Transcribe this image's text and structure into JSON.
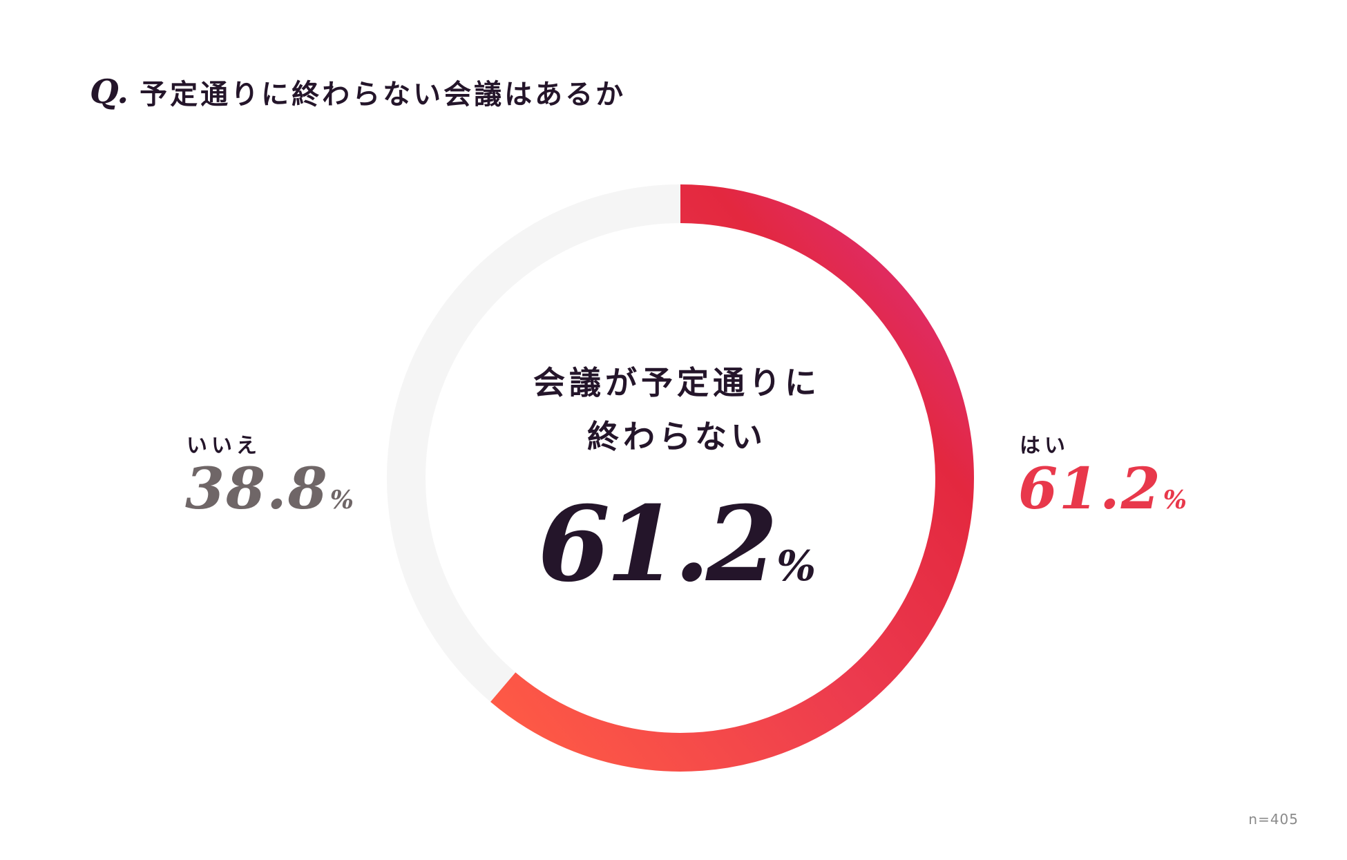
{
  "question": {
    "prefix": "Q.",
    "text": "予定通りに終わらない会議はあるか"
  },
  "center": {
    "title_line1": "会議が予定通りに",
    "title_line2": "終わらない",
    "value": "61.2",
    "unit": "%"
  },
  "labels": {
    "no_label": "いいえ",
    "no_value": "38.8",
    "no_unit": "%",
    "yes_label": "はい",
    "yes_value": "61.2",
    "yes_unit": "%"
  },
  "sample_size": "n=405",
  "colors": {
    "yes_gradient": [
      "#ff5c45",
      "#ec3a4e",
      "#e3283f",
      "#dc2f86"
    ],
    "no": "#f5f5f5",
    "yes_text": "#e8384b",
    "no_text": "#6f6667",
    "dark_text": "#24152a"
  },
  "chart_data": {
    "type": "pie",
    "categories": [
      "はい",
      "いいえ"
    ],
    "values": [
      61.2,
      38.8
    ],
    "unit": "%",
    "donut": true,
    "direction": "clockwise from top"
  }
}
